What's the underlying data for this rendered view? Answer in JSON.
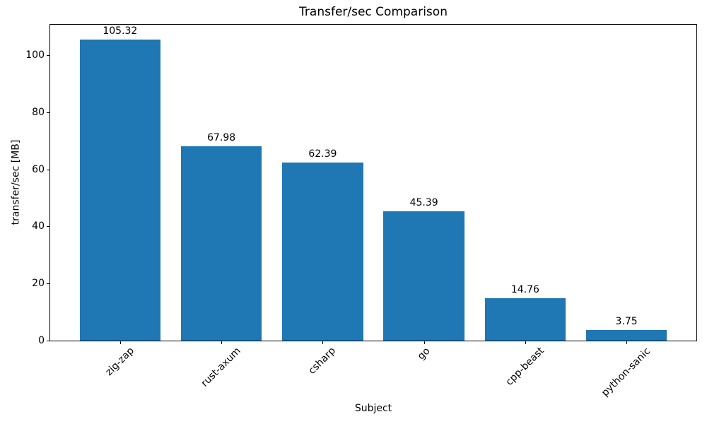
{
  "chart_data": {
    "type": "bar",
    "title": "Transfer/sec Comparison",
    "xlabel": "Subject",
    "ylabel": "transfer/sec [MB]",
    "categories": [
      "zig-zap",
      "rust-axum",
      "csharp",
      "go",
      "cpp-beast",
      "python-sanic"
    ],
    "values": [
      105.32,
      67.98,
      62.39,
      45.39,
      14.76,
      3.75
    ],
    "value_labels": [
      "105.32",
      "67.98",
      "62.39",
      "45.39",
      "14.76",
      "3.75"
    ],
    "yticks": [
      0,
      20,
      40,
      60,
      80,
      100
    ],
    "ylim": [
      0,
      110.6
    ],
    "xtick_rotation_deg": 45,
    "bar_color": "#1f77b4",
    "background_color": "#ffffff",
    "grid": false,
    "legend": null
  }
}
